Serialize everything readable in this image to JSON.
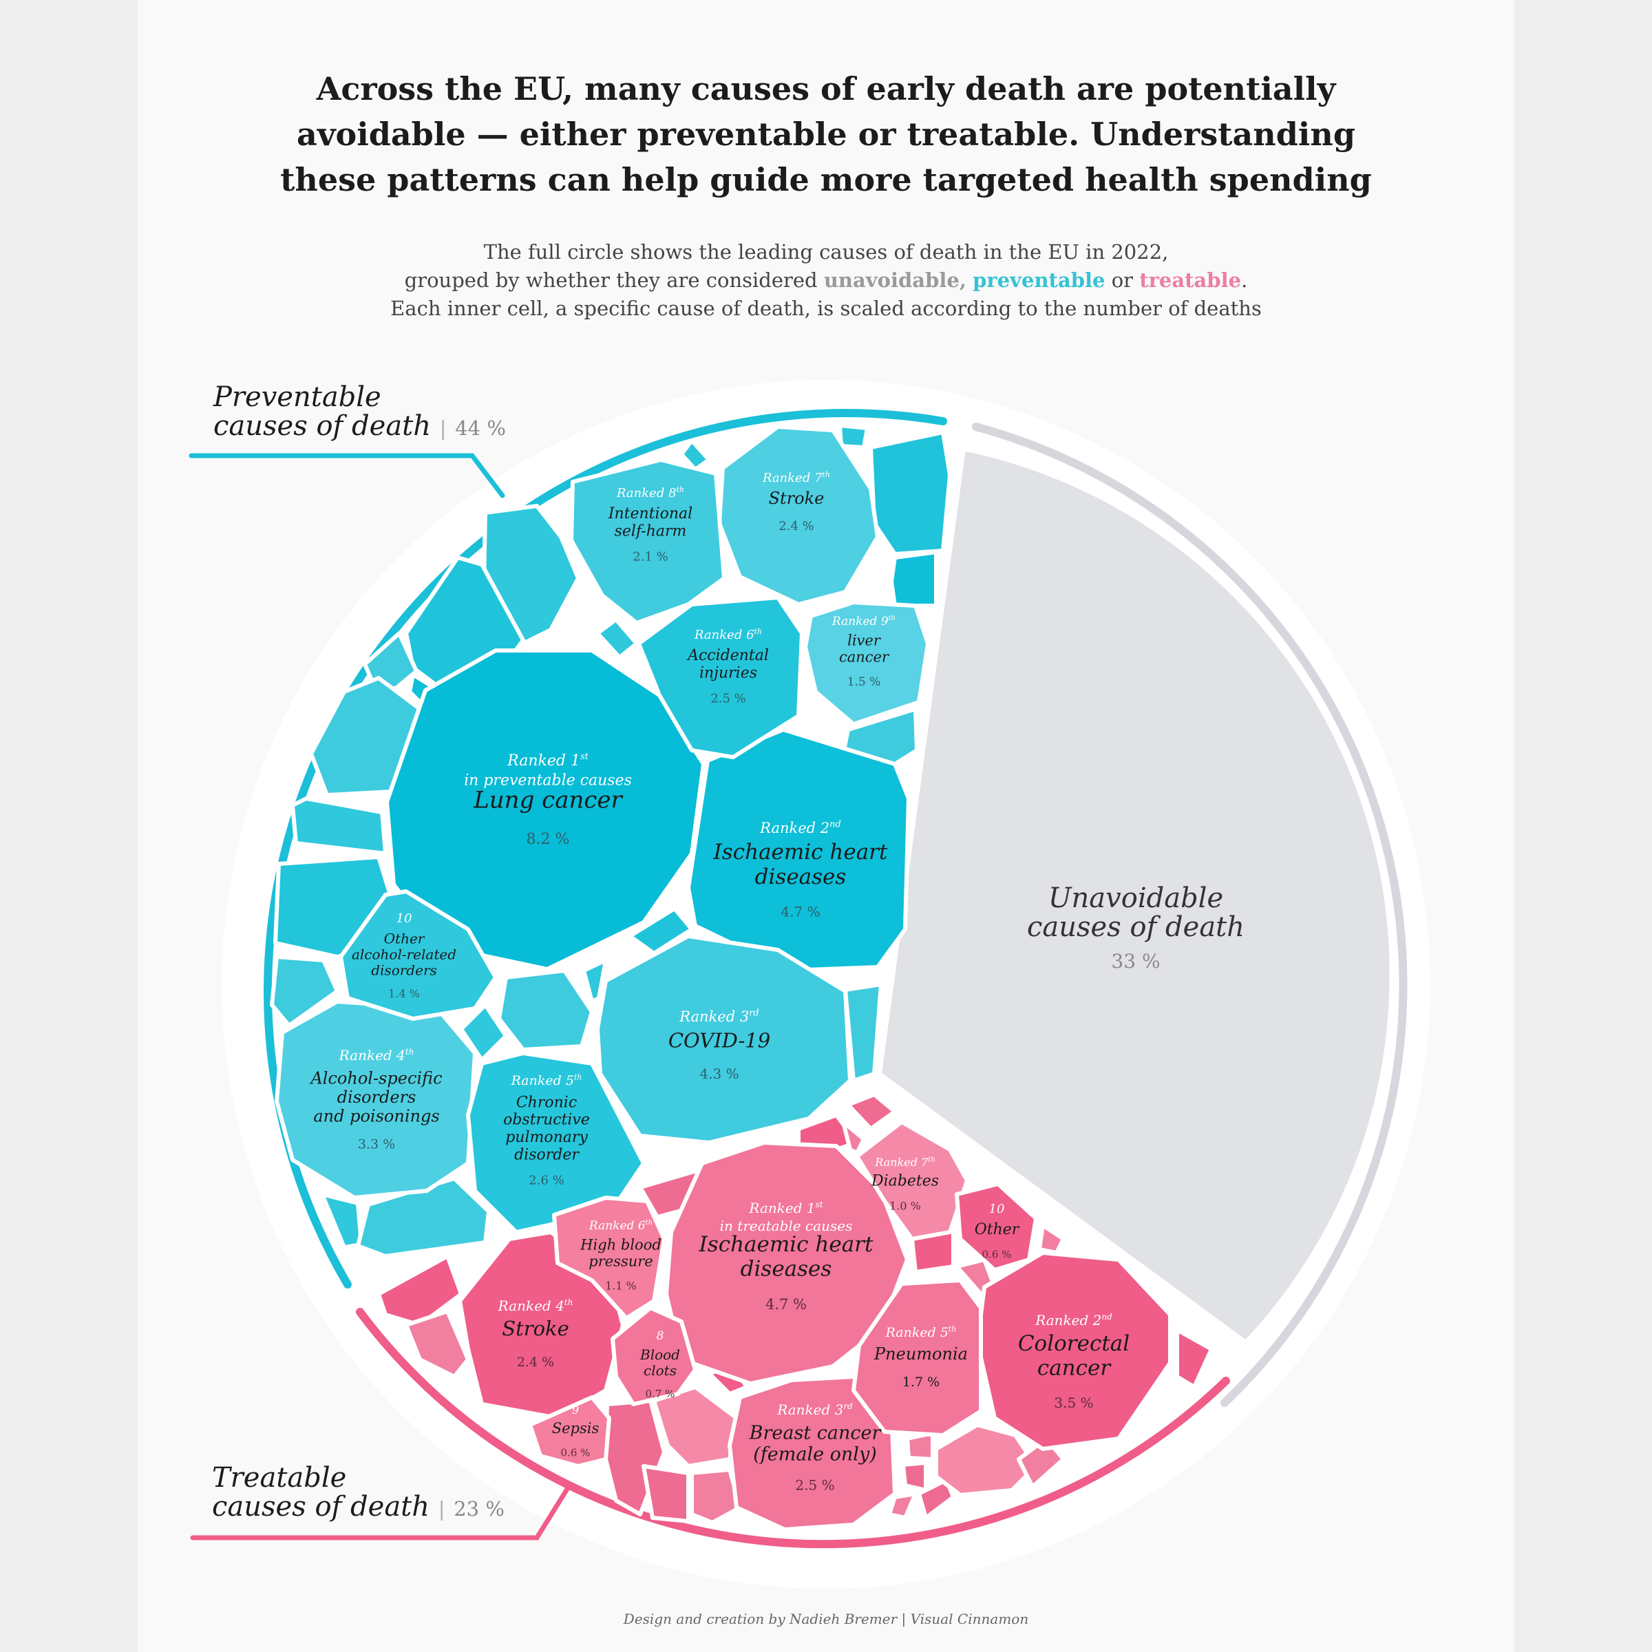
{
  "title_lines": [
    "Across the EU, many causes of early death are potentially",
    "avoidable — either preventable or treatable. Understanding",
    "these patterns can help guide more targeted health spending"
  ],
  "subtitle": {
    "line1": "The full circle shows the leading causes of death in the EU in 2022,",
    "line2_pre": "grouped by whether they are considered",
    "unavoidable": "unavoidable",
    "comma": ",",
    "preventable": "preventable",
    "or": "or",
    "treatable": "treatable",
    "period": ".",
    "line3": "Each inner cell, a specific cause of death, is scaled according to the number of deaths"
  },
  "colors": {
    "preventable": "#1bbfd8",
    "treatable": "#ef5d88",
    "unavoidable": "#e1e2e6",
    "ring_unavoidable": "#d6d6dc"
  },
  "sections": {
    "preventable": {
      "label_line1": "Preventable",
      "label_line2": "causes of death",
      "separator": "|",
      "pct": "44 %"
    },
    "treatable": {
      "label_line1": "Treatable",
      "label_line2": "causes of death",
      "separator": "|",
      "pct": "23 %"
    },
    "unavoidable": {
      "label_line1": "Unavoidable",
      "label_line2": "causes of death",
      "pct": "33 %"
    }
  },
  "preventable_cells": [
    {
      "rank": "Ranked 1",
      "sup": "st",
      "rank_note": "in preventable causes",
      "name": [
        "Lung cancer"
      ],
      "pct": "8.2 %"
    },
    {
      "rank": "Ranked 2",
      "sup": "nd",
      "name": [
        "Ischaemic heart",
        "diseases"
      ],
      "pct": "4.7 %"
    },
    {
      "rank": "Ranked 3",
      "sup": "rd",
      "name": [
        "COVID-19"
      ],
      "pct": "4.3 %"
    },
    {
      "rank": "Ranked 4",
      "sup": "th",
      "name": [
        "Alcohol-specific",
        "disorders",
        "and poisonings"
      ],
      "pct": "3.3 %"
    },
    {
      "rank": "Ranked 5",
      "sup": "th",
      "name": [
        "Chronic",
        "obstructive",
        "pulmonary",
        "disorder"
      ],
      "pct": "2.6 %"
    },
    {
      "rank": "Ranked 6",
      "sup": "th",
      "name": [
        "Accidental",
        "injuries"
      ],
      "pct": "2.5 %"
    },
    {
      "rank": "Ranked 7",
      "sup": "th",
      "name": [
        "Stroke"
      ],
      "pct": "2.4 %"
    },
    {
      "rank": "Ranked 8",
      "sup": "th",
      "name": [
        "Intentional",
        "self-harm"
      ],
      "pct": "2.1 %"
    },
    {
      "rank": "Ranked 9",
      "sup": "th",
      "name": [
        "liver",
        "cancer"
      ],
      "pct": "1.5 %"
    },
    {
      "rank": "10",
      "sup": "",
      "name": [
        "Other",
        "alcohol-related",
        "disorders"
      ],
      "pct": "1.4 %"
    }
  ],
  "treatable_cells": [
    {
      "rank": "Ranked 1",
      "sup": "st",
      "rank_note": "in treatable causes",
      "name": [
        "Ischaemic heart",
        "diseases"
      ],
      "pct": "4.7 %"
    },
    {
      "rank": "Ranked 2",
      "sup": "nd",
      "name": [
        "Colorectal",
        "cancer"
      ],
      "pct": "3.5 %"
    },
    {
      "rank": "Ranked 3",
      "sup": "rd",
      "name": [
        "Breast cancer",
        "(female only)"
      ],
      "pct": "2.5 %"
    },
    {
      "rank": "Ranked 4",
      "sup": "th",
      "name": [
        "Stroke"
      ],
      "pct": "2.4 %"
    },
    {
      "rank": "Ranked 5",
      "sup": "th",
      "name": [
        "Pneumonia"
      ],
      "pct": "1.7 %"
    },
    {
      "rank": "Ranked 6",
      "sup": "th",
      "name": [
        "High blood",
        "pressure"
      ],
      "pct": "1.1 %"
    },
    {
      "rank": "Ranked 7",
      "sup": "th",
      "name": [
        "Diabetes"
      ],
      "pct": "1.0 %"
    },
    {
      "rank": "8",
      "sup": "",
      "name": [
        "Blood",
        "clots"
      ],
      "pct": "0.7 %"
    },
    {
      "rank": "9",
      "sup": "",
      "name": [
        "Sepsis"
      ],
      "pct": "0.6 %"
    },
    {
      "rank": "10",
      "sup": "",
      "name": [
        "Other"
      ],
      "pct": "0.6 %"
    }
  ],
  "credit": "Design and creation by Nadieh Bremer | Visual Cinnamon"
}
